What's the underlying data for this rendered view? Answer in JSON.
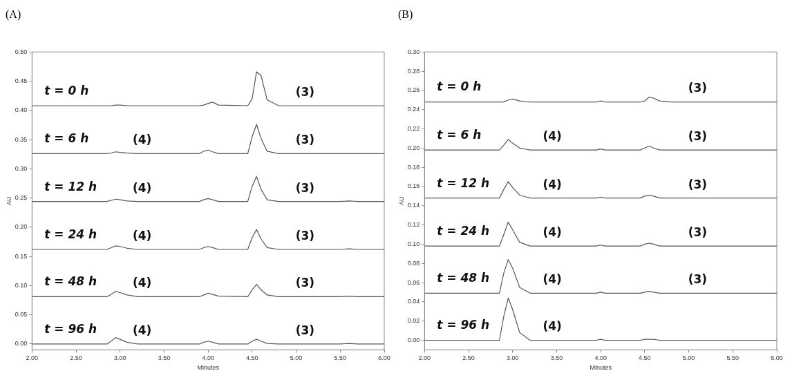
{
  "chart_data": [
    {
      "type": "line",
      "title": "(A)",
      "xlabel": "Minutes",
      "ylabel": "AU",
      "grid": false,
      "legend": false,
      "marker": "none",
      "line_style": "solid",
      "x": [
        2.0,
        2.85,
        2.9,
        2.95,
        3.0,
        3.08,
        3.2,
        3.9,
        3.95,
        4.0,
        4.05,
        4.12,
        4.45,
        4.5,
        4.55,
        4.6,
        4.67,
        4.8,
        5.5,
        5.6,
        5.7,
        6.0
      ],
      "xlim": [
        2.0,
        6.0
      ],
      "xticks": [
        {
          "value": 2,
          "label": "2.00"
        },
        {
          "value": 2.5,
          "label": "2.50"
        },
        {
          "value": 3,
          "label": "3.00"
        },
        {
          "value": 3.5,
          "label": "3.50"
        },
        {
          "value": 4,
          "label": "4.00"
        },
        {
          "value": 4.5,
          "label": "4.50"
        },
        {
          "value": 5,
          "label": "5.00"
        },
        {
          "value": 5.5,
          "label": "5.50"
        },
        {
          "value": 6,
          "label": "6.00"
        }
      ],
      "ylim": [
        -0.01,
        0.5
      ],
      "yticks": [
        {
          "value": 0,
          "label": "0.00"
        },
        {
          "value": 0.05,
          "label": "0.05"
        },
        {
          "value": 0.1,
          "label": "0.10"
        },
        {
          "value": 0.15,
          "label": "0.15"
        },
        {
          "value": 0.2,
          "label": "0.20"
        },
        {
          "value": 0.25,
          "label": "0.25"
        },
        {
          "value": 0.3,
          "label": "0.30"
        },
        {
          "value": 0.35,
          "label": "0.35"
        },
        {
          "value": 0.4,
          "label": "0.40"
        },
        {
          "value": 0.45,
          "label": "0.45"
        },
        {
          "value": 0.5,
          "label": "0.50"
        }
      ],
      "series": [
        {
          "name": "t = 0 h",
          "color": "#555555",
          "values": [
            0.408,
            0.408,
            0.408,
            0.409,
            0.409,
            0.408,
            0.408,
            0.408,
            0.409,
            0.412,
            0.414,
            0.409,
            0.408,
            0.42,
            0.466,
            0.46,
            0.418,
            0.408,
            0.408,
            0.408,
            0.408,
            0.408
          ]
        },
        {
          "name": "t = 6 h",
          "color": "#555555",
          "values": [
            0.326,
            0.326,
            0.327,
            0.329,
            0.328,
            0.327,
            0.326,
            0.326,
            0.33,
            0.332,
            0.329,
            0.326,
            0.326,
            0.355,
            0.376,
            0.352,
            0.33,
            0.326,
            0.326,
            0.326,
            0.326,
            0.326
          ]
        },
        {
          "name": "t = 12 h",
          "color": "#555555",
          "values": [
            0.244,
            0.244,
            0.246,
            0.248,
            0.247,
            0.245,
            0.244,
            0.244,
            0.247,
            0.249,
            0.247,
            0.244,
            0.244,
            0.27,
            0.287,
            0.265,
            0.247,
            0.244,
            0.244,
            0.245,
            0.244,
            0.244
          ]
        },
        {
          "name": "t = 24 h",
          "color": "#555555",
          "values": [
            0.162,
            0.162,
            0.165,
            0.168,
            0.167,
            0.164,
            0.162,
            0.162,
            0.165,
            0.167,
            0.165,
            0.162,
            0.162,
            0.182,
            0.196,
            0.18,
            0.165,
            0.162,
            0.162,
            0.163,
            0.162,
            0.162
          ]
        },
        {
          "name": "t = 48 h",
          "color": "#555555",
          "values": [
            0.081,
            0.081,
            0.085,
            0.09,
            0.088,
            0.084,
            0.081,
            0.081,
            0.084,
            0.087,
            0.085,
            0.082,
            0.081,
            0.093,
            0.102,
            0.093,
            0.084,
            0.081,
            0.081,
            0.082,
            0.081,
            0.081
          ]
        },
        {
          "name": "t = 96 h",
          "color": "#555555",
          "values": [
            0,
            0,
            0.005,
            0.011,
            0.008,
            0.003,
            0,
            0,
            0.003,
            0.005,
            0.003,
            0,
            0,
            0.005,
            0.008,
            0.005,
            0.001,
            0,
            0,
            0.001,
            0,
            0
          ]
        }
      ],
      "annotations": [
        {
          "text": "(4)",
          "x": 3.25,
          "y": 0.326
        },
        {
          "text": "(4)",
          "x": 3.25,
          "y": 0.244
        },
        {
          "text": "(4)",
          "x": 3.25,
          "y": 0.162
        },
        {
          "text": "(4)",
          "x": 3.25,
          "y": 0.081
        },
        {
          "text": "(4)",
          "x": 3.25,
          "y": 0
        },
        {
          "text": "(3)",
          "x": 5.1,
          "y": 0.408
        },
        {
          "text": "(3)",
          "x": 5.1,
          "y": 0.326
        },
        {
          "text": "(3)",
          "x": 5.1,
          "y": 0.244
        },
        {
          "text": "(3)",
          "x": 5.1,
          "y": 0.162
        },
        {
          "text": "(3)",
          "x": 5.1,
          "y": 0.081
        },
        {
          "text": "(3)",
          "x": 5.1,
          "y": 0
        }
      ]
    },
    {
      "type": "line",
      "title": "(B)",
      "xlabel": "Minutes",
      "ylabel": "AU",
      "grid": false,
      "legend": false,
      "marker": "none",
      "line_style": "solid",
      "x": [
        2.0,
        2.85,
        2.9,
        2.95,
        3.0,
        3.08,
        3.2,
        3.9,
        3.95,
        4.0,
        4.05,
        4.12,
        4.45,
        4.5,
        4.55,
        4.6,
        4.67,
        4.8,
        5.5,
        5.6,
        5.7,
        6.0
      ],
      "xlim": [
        2.0,
        6.0
      ],
      "xticks": [
        {
          "value": 2,
          "label": "2.00"
        },
        {
          "value": 2.5,
          "label": "2.50"
        },
        {
          "value": 3,
          "label": "3.00"
        },
        {
          "value": 3.5,
          "label": "3.50"
        },
        {
          "value": 4,
          "label": "4.00"
        },
        {
          "value": 4.5,
          "label": "4.50"
        },
        {
          "value": 5,
          "label": "5.00"
        },
        {
          "value": 5.5,
          "label": "5.50"
        },
        {
          "value": 6,
          "label": "6.00"
        }
      ],
      "ylim": [
        -0.01,
        0.3
      ],
      "yticks": [
        {
          "value": 0,
          "label": "0.00"
        },
        {
          "value": 0.02,
          "label": "0.02"
        },
        {
          "value": 0.04,
          "label": "0.04"
        },
        {
          "value": 0.06,
          "label": "0.06"
        },
        {
          "value": 0.08,
          "label": "0.08"
        },
        {
          "value": 0.1,
          "label": "0.10"
        },
        {
          "value": 0.12,
          "label": "0.12"
        },
        {
          "value": 0.14,
          "label": "0.14"
        },
        {
          "value": 0.16,
          "label": "0.16"
        },
        {
          "value": 0.18,
          "label": "0.18"
        },
        {
          "value": 0.2,
          "label": "0.20"
        },
        {
          "value": 0.22,
          "label": "0.22"
        },
        {
          "value": 0.24,
          "label": "0.24"
        },
        {
          "value": 0.26,
          "label": "0.26"
        },
        {
          "value": 0.28,
          "label": "0.28"
        },
        {
          "value": 0.3,
          "label": "0.30"
        }
      ],
      "series": [
        {
          "name": "t = 0 h",
          "color": "#555555",
          "values": [
            0.248,
            0.248,
            0.248,
            0.25,
            0.251,
            0.249,
            0.248,
            0.248,
            0.248,
            0.249,
            0.248,
            0.248,
            0.248,
            0.249,
            0.253,
            0.252,
            0.249,
            0.248,
            0.248,
            0.248,
            0.248,
            0.248
          ]
        },
        {
          "name": "t = 6 h",
          "color": "#555555",
          "values": [
            0.198,
            0.198,
            0.203,
            0.209,
            0.205,
            0.2,
            0.198,
            0.198,
            0.198,
            0.199,
            0.198,
            0.198,
            0.198,
            0.2,
            0.202,
            0.2,
            0.198,
            0.198,
            0.198,
            0.198,
            0.198,
            0.198
          ]
        },
        {
          "name": "t = 12 h",
          "color": "#555555",
          "values": [
            0.148,
            0.148,
            0.157,
            0.165,
            0.159,
            0.151,
            0.148,
            0.148,
            0.148,
            0.149,
            0.148,
            0.148,
            0.148,
            0.15,
            0.151,
            0.15,
            0.148,
            0.148,
            0.148,
            0.148,
            0.148,
            0.148
          ]
        },
        {
          "name": "t = 24 h",
          "color": "#555555",
          "values": [
            0.098,
            0.098,
            0.11,
            0.123,
            0.115,
            0.102,
            0.098,
            0.098,
            0.098,
            0.099,
            0.098,
            0.098,
            0.098,
            0.1,
            0.101,
            0.1,
            0.098,
            0.098,
            0.098,
            0.098,
            0.098,
            0.098
          ]
        },
        {
          "name": "t = 48 h",
          "color": "#555555",
          "values": [
            0.049,
            0.049,
            0.07,
            0.084,
            0.075,
            0.055,
            0.049,
            0.049,
            0.049,
            0.05,
            0.049,
            0.049,
            0.049,
            0.05,
            0.051,
            0.05,
            0.049,
            0.049,
            0.049,
            0.049,
            0.049,
            0.049
          ]
        },
        {
          "name": "t = 96 h",
          "color": "#555555",
          "values": [
            0,
            0,
            0.025,
            0.044,
            0.032,
            0.008,
            0,
            0,
            0,
            0.001,
            0,
            0,
            0,
            0.001,
            0.001,
            0.001,
            0,
            0,
            0,
            0,
            0,
            0
          ]
        }
      ],
      "annotations": [
        {
          "text": "(4)",
          "x": 3.45,
          "y": 0.198
        },
        {
          "text": "(4)",
          "x": 3.45,
          "y": 0.148
        },
        {
          "text": "(4)",
          "x": 3.45,
          "y": 0.098
        },
        {
          "text": "(4)",
          "x": 3.45,
          "y": 0.049
        },
        {
          "text": "(4)",
          "x": 3.45,
          "y": 0
        },
        {
          "text": "(3)",
          "x": 5.1,
          "y": 0.248
        },
        {
          "text": "(3)",
          "x": 5.1,
          "y": 0.198
        },
        {
          "text": "(3)",
          "x": 5.1,
          "y": 0.148
        },
        {
          "text": "(3)",
          "x": 5.1,
          "y": 0.098
        },
        {
          "text": "(3)",
          "x": 5.1,
          "y": 0.049
        }
      ]
    }
  ]
}
